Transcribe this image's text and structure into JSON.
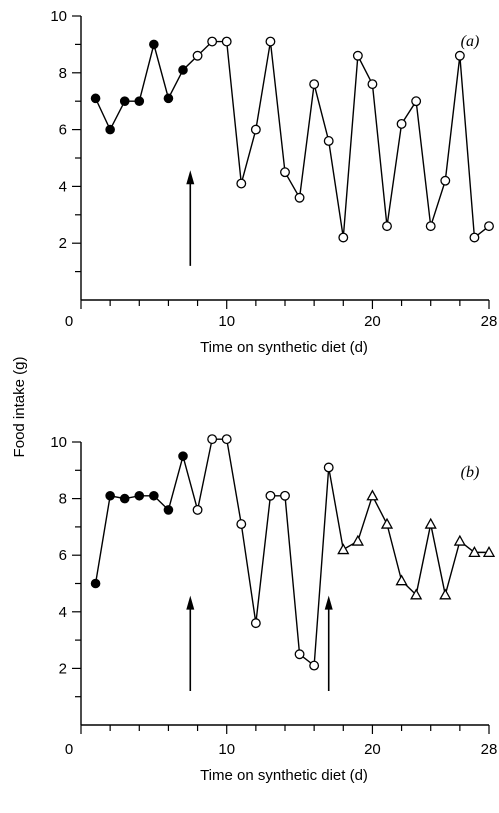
{
  "figure": {
    "ylabel": "Food intake (g)"
  },
  "chart_data": [
    {
      "type": "line",
      "panel_label": "(a)",
      "xlabel": "Time on synthetic diet (d)",
      "ylabel": "Food intake (g)",
      "xlim": [
        0,
        28
      ],
      "ylim": [
        0,
        10
      ],
      "x_tick_labels": [
        "0",
        "10",
        "20",
        "28"
      ],
      "x_tick_values": [
        0,
        10,
        20,
        28
      ],
      "y_tick_labels": [
        "2",
        "4",
        "6",
        "8",
        "10"
      ],
      "y_tick_values": [
        2,
        4,
        6,
        8,
        10
      ],
      "series": [
        {
          "marker": "filled-circle",
          "x": [
            1,
            2,
            3,
            4,
            5,
            6,
            7
          ],
          "y": [
            7.1,
            6.0,
            7.0,
            7.0,
            9.0,
            7.1,
            8.1
          ]
        },
        {
          "marker": "open-circle",
          "x": [
            8,
            9,
            10,
            11,
            12,
            13,
            14,
            15,
            16,
            17,
            18,
            19,
            20,
            21,
            22,
            23,
            24,
            25,
            26,
            27,
            28
          ],
          "y": [
            8.6,
            9.1,
            9.1,
            4.1,
            6.0,
            9.1,
            4.5,
            3.6,
            7.6,
            5.6,
            2.2,
            8.6,
            7.6,
            2.6,
            6.2,
            7.0,
            2.6,
            4.2,
            8.6,
            2.2,
            2.6
          ]
        }
      ],
      "arrows": [
        7.5
      ]
    },
    {
      "type": "line",
      "panel_label": "(b)",
      "xlabel": "Time on synthetic diet (d)",
      "ylabel": "Food intake (g)",
      "xlim": [
        0,
        28
      ],
      "ylim": [
        0,
        10
      ],
      "x_tick_labels": [
        "0",
        "10",
        "20",
        "28"
      ],
      "x_tick_values": [
        0,
        10,
        20,
        28
      ],
      "y_tick_labels": [
        "2",
        "4",
        "6",
        "8",
        "10"
      ],
      "y_tick_values": [
        2,
        4,
        6,
        8,
        10
      ],
      "series": [
        {
          "marker": "filled-circle",
          "x": [
            1,
            2,
            3,
            4,
            5,
            6,
            7
          ],
          "y": [
            5.0,
            8.1,
            8.0,
            8.1,
            8.1,
            7.6,
            9.5
          ]
        },
        {
          "marker": "open-circle",
          "x": [
            8,
            9,
            10,
            11,
            12,
            13,
            14,
            15,
            16,
            17
          ],
          "y": [
            7.6,
            10.1,
            10.1,
            7.1,
            3.6,
            8.1,
            8.1,
            2.5,
            2.1,
            9.1
          ]
        },
        {
          "marker": "open-triangle",
          "x": [
            18,
            19,
            20,
            21,
            22,
            23,
            24,
            25,
            26,
            27,
            28
          ],
          "y": [
            6.2,
            6.5,
            8.1,
            7.1,
            5.1,
            4.6,
            7.1,
            4.6,
            6.5,
            6.1,
            6.1
          ]
        }
      ],
      "arrows": [
        7.5,
        17
      ]
    }
  ]
}
